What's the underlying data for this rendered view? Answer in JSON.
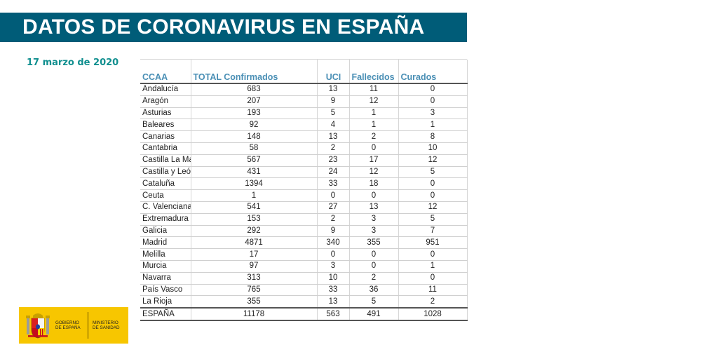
{
  "header": {
    "title": "DATOS DE CORONAVIRUS EN ESPAÑA"
  },
  "date": "17 marzo de 2020",
  "table": {
    "columns": [
      "CCAA",
      "TOTAL Confirmados",
      "UCI",
      "Fallecidos",
      "Curados"
    ],
    "rows": [
      [
        "Andalucía",
        "683",
        "13",
        "11",
        "0"
      ],
      [
        "Aragón",
        "207",
        "9",
        "12",
        "0"
      ],
      [
        "Asturias",
        "193",
        "5",
        "1",
        "3"
      ],
      [
        "Baleares",
        "92",
        "4",
        "1",
        "1"
      ],
      [
        "Canarias",
        "148",
        "13",
        "2",
        "8"
      ],
      [
        "Cantabria",
        "58",
        "2",
        "0",
        "10"
      ],
      [
        "Castilla La Ma",
        "567",
        "23",
        "17",
        "12"
      ],
      [
        "Castilla y León",
        "431",
        "24",
        "12",
        "5"
      ],
      [
        "Cataluña",
        "1394",
        "33",
        "18",
        "0"
      ],
      [
        "Ceuta",
        "1",
        "0",
        "0",
        "0"
      ],
      [
        "C. Valenciana",
        "541",
        "27",
        "13",
        "12"
      ],
      [
        "Extremadura",
        "153",
        "2",
        "3",
        "5"
      ],
      [
        "Galicia",
        "292",
        "9",
        "3",
        "7"
      ],
      [
        "Madrid",
        "4871",
        "340",
        "355",
        "951"
      ],
      [
        "Melilla",
        "17",
        "0",
        "0",
        "0"
      ],
      [
        "Murcia",
        "97",
        "3",
        "0",
        "1"
      ],
      [
        "Navarra",
        "313",
        "10",
        "2",
        "0"
      ],
      [
        "País Vasco",
        "765",
        "33",
        "36",
        "11"
      ],
      [
        "La Rioja",
        "355",
        "13",
        "5",
        "2"
      ]
    ],
    "total": [
      "ESPAÑA",
      "11178",
      "563",
      "491",
      "1028"
    ]
  },
  "logo": {
    "gobierno": [
      "GOBIERNO",
      "DE ESPAÑA"
    ],
    "ministerio": [
      "MINISTERIO",
      "DE SANIDAD"
    ],
    "icon": "coat-of-arms-icon"
  },
  "colors": {
    "banner": "#005c78",
    "date": "#108f8f",
    "header_text": "#4a8fb5",
    "logo_bg": "#f7c600"
  }
}
